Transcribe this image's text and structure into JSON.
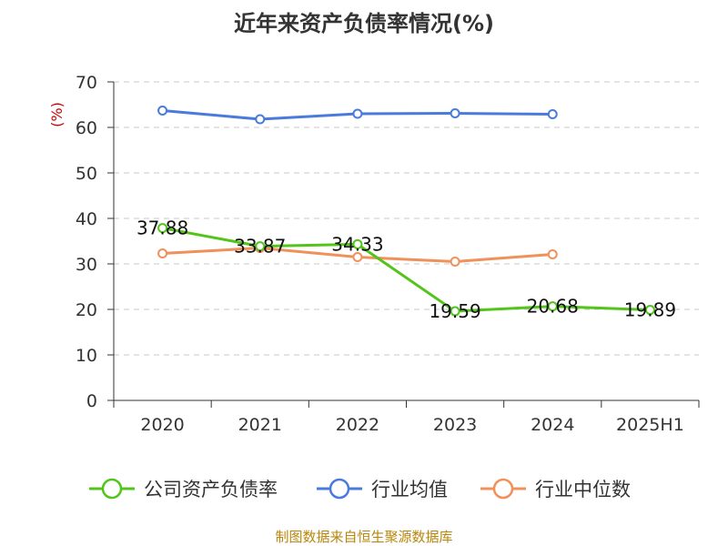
{
  "chart_data": {
    "type": "line",
    "title": "近年来资产负债率情况(%)",
    "ylabel": "(%)",
    "xlabel": "",
    "ylim": [
      0,
      70
    ],
    "yticks": [
      0,
      10,
      20,
      30,
      40,
      50,
      60,
      70
    ],
    "grid": true,
    "legend_position": "bottom",
    "categories": [
      "2020",
      "2021",
      "2022",
      "2023",
      "2024",
      "2025H1"
    ],
    "series": [
      {
        "name": "公司资产负债率",
        "color": "#52c41a",
        "values": [
          37.88,
          33.87,
          34.33,
          19.59,
          20.68,
          19.89
        ],
        "labels": [
          "37.88",
          "33.87",
          "34.33",
          "19.59",
          "20.68",
          "19.89"
        ]
      },
      {
        "name": "行业均值",
        "color": "#4a7bdc",
        "values": [
          63.7,
          61.8,
          63.0,
          63.1,
          62.9,
          null
        ]
      },
      {
        "name": "行业中位数",
        "color": "#f0905a",
        "values": [
          32.3,
          33.5,
          31.5,
          30.5,
          32.1,
          null
        ]
      }
    ]
  },
  "source": "制图数据来自恒生聚源数据库"
}
